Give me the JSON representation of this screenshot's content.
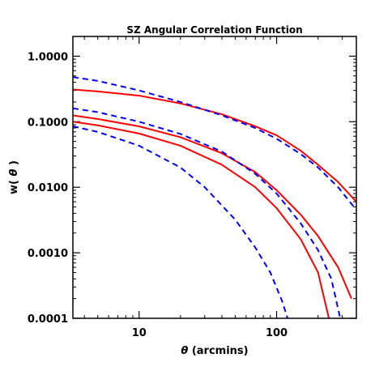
{
  "chart_data": {
    "type": "line",
    "title": "SZ Angular Correlation Function",
    "xlabel_symbol": "θ",
    "xlabel_unit": "(arcmins)",
    "ylabel_prefix": "w(",
    "ylabel_symbol": "θ",
    "ylabel_suffix": ")",
    "x_scale": "log",
    "y_scale": "log",
    "xlim": [
      3.3,
      380
    ],
    "ylim": [
      0.0001,
      2.0
    ],
    "x_ticks": [
      {
        "value": 10,
        "label": "10"
      },
      {
        "value": 100,
        "label": "100"
      }
    ],
    "y_ticks": [
      {
        "value": 1.0,
        "label": "1.0000"
      },
      {
        "value": 0.1,
        "label": "0.1000"
      },
      {
        "value": 0.01,
        "label": "0.0100"
      },
      {
        "value": 0.001,
        "label": "0.0010"
      },
      {
        "value": 0.0001,
        "label": "0.0001"
      }
    ],
    "grid": false,
    "series": [
      {
        "style": "solid",
        "color": "#ff0000",
        "x": [
          3.3,
          5,
          10,
          20,
          40,
          70,
          100,
          150,
          200,
          280,
          380
        ],
        "y": [
          0.31,
          0.29,
          0.25,
          0.19,
          0.13,
          0.085,
          0.062,
          0.036,
          0.022,
          0.012,
          0.006
        ]
      },
      {
        "style": "dashed",
        "color": "#0000ff",
        "x": [
          3.3,
          5,
          10,
          20,
          40,
          70,
          100,
          150,
          200,
          280,
          380
        ],
        "y": [
          0.48,
          0.42,
          0.3,
          0.2,
          0.125,
          0.08,
          0.055,
          0.032,
          0.02,
          0.01,
          0.0045
        ]
      },
      {
        "style": "solid",
        "color": "#ff0000",
        "x": [
          3.3,
          5,
          10,
          20,
          40,
          70,
          100,
          150,
          200,
          280,
          350
        ],
        "y": [
          0.125,
          0.11,
          0.085,
          0.058,
          0.033,
          0.017,
          0.009,
          0.0038,
          0.0018,
          0.0006,
          0.0002
        ]
      },
      {
        "style": "dashed",
        "color": "#0000ff",
        "x": [
          3.3,
          5,
          10,
          20,
          40,
          70,
          100,
          150,
          200,
          250,
          290
        ],
        "y": [
          0.16,
          0.14,
          0.1,
          0.065,
          0.035,
          0.016,
          0.008,
          0.0028,
          0.0011,
          0.0004,
          0.0001
        ]
      },
      {
        "style": "solid",
        "color": "#ff0000",
        "x": [
          3.3,
          5,
          10,
          20,
          40,
          70,
          100,
          150,
          200,
          240
        ],
        "y": [
          0.1,
          0.088,
          0.066,
          0.043,
          0.022,
          0.01,
          0.0048,
          0.0016,
          0.0005,
          0.0001
        ]
      },
      {
        "style": "dashed",
        "color": "#0000ff",
        "x": [
          3.3,
          5,
          10,
          20,
          30,
          50,
          70,
          90,
          110,
          120
        ],
        "y": [
          0.085,
          0.07,
          0.043,
          0.02,
          0.01,
          0.0032,
          0.0012,
          0.0005,
          0.00018,
          0.0001
        ]
      }
    ]
  }
}
